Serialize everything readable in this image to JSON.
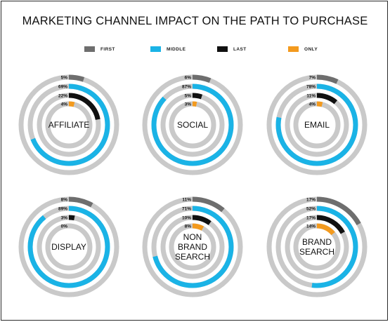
{
  "title": "MARKETING CHANNEL IMPACT ON THE PATH TO PURCHASE",
  "colors": {
    "FIRST": "#6e6e6e",
    "MIDDLE": "#1ab3e6",
    "LAST": "#111111",
    "ONLY": "#f39a1e",
    "track": "#c9c9c9"
  },
  "chart_data": {
    "type": "radial-bar",
    "legend": [
      "FIRST",
      "MIDDLE",
      "LAST",
      "ONLY"
    ],
    "legend_position": "top",
    "channels": [
      {
        "name": "AFFILIATE",
        "values": {
          "FIRST": 5,
          "MIDDLE": 69,
          "LAST": 22,
          "ONLY": 4
        },
        "labels": {
          "FIRST": "5%",
          "MIDDLE": "69%",
          "LAST": "22%",
          "ONLY": "4%"
        }
      },
      {
        "name": "SOCIAL",
        "values": {
          "FIRST": 6,
          "MIDDLE": 87,
          "LAST": 5,
          "ONLY": 3
        },
        "labels": {
          "FIRST": "6%",
          "MIDDLE": "87%",
          "LAST": "5%",
          "ONLY": "3%"
        }
      },
      {
        "name": "EMAIL",
        "values": {
          "FIRST": 7,
          "MIDDLE": 78,
          "LAST": 11,
          "ONLY": 4
        },
        "labels": {
          "FIRST": "7%",
          "MIDDLE": "78%",
          "LAST": "11%",
          "ONLY": "4%"
        }
      },
      {
        "name": "DISPLAY",
        "values": {
          "FIRST": 8,
          "MIDDLE": 89,
          "LAST": 3,
          "ONLY": 0
        },
        "labels": {
          "FIRST": "8%",
          "MIDDLE": "89%",
          "LAST": "3%",
          "ONLY": "0%"
        }
      },
      {
        "name": "NON\nBRAND\nSEARCH",
        "values": {
          "FIRST": 11,
          "MIDDLE": 71,
          "LAST": 10,
          "ONLY": 8
        },
        "labels": {
          "FIRST": "11%",
          "MIDDLE": "71%",
          "LAST": "10%",
          "ONLY": "8%"
        }
      },
      {
        "name": "BRAND\nSEARCH",
        "values": {
          "FIRST": 17,
          "MIDDLE": 52,
          "LAST": 17,
          "ONLY": 14
        },
        "labels": {
          "FIRST": "17%",
          "MIDDLE": "52%",
          "LAST": "17%",
          "ONLY": "14%"
        }
      }
    ]
  }
}
